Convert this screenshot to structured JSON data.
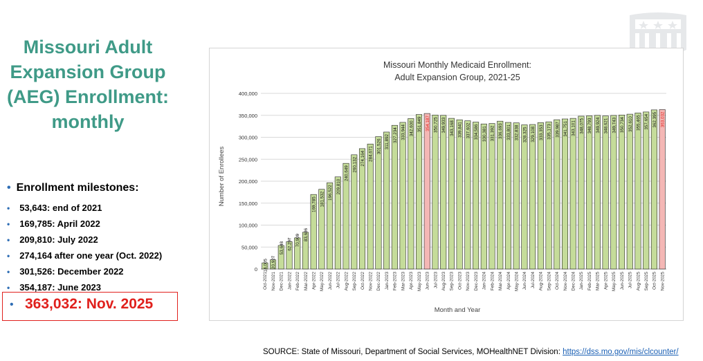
{
  "title": "Missouri Adult Expansion Group (AEG) Enrollment: monthly",
  "milestones": {
    "heading": "Enrollment milestones:",
    "items": [
      "53,643: end of 2021",
      "169,785: April 2022",
      "209,810: July 2022",
      "274,164 after one year (Oct. 2022)",
      "301,526: December 2022",
      "354,187: June 2023"
    ],
    "highlight": "363,032: Nov. 2025"
  },
  "source": {
    "text": "SOURCE: State of Missouri, Department of Social Services, MOHealthNET Division:",
    "link": "https://dss.mo.gov/mis/clcounter/"
  },
  "colors": {
    "bar": "#c5dc9a",
    "highlight_bar": "#f4b7b5",
    "title": "#3f9a87",
    "accent": "#e0201c"
  },
  "chart_data": {
    "type": "bar",
    "title": [
      "Missouri Monthly Medicaid Enrollment:",
      "Adult Expansion Group, 2021-25"
    ],
    "xlabel": "Month and Year",
    "ylabel": "Number of Enrollees",
    "ylim": [
      0,
      400000
    ],
    "yticks": [
      "0",
      "50,000",
      "100,000",
      "150,000",
      "200,000",
      "250,000",
      "300,000",
      "350,000",
      "400,000"
    ],
    "grid": true,
    "categories": [
      "Oct-2021",
      "Nov-2021",
      "Dec-2021",
      "Jan-2022",
      "Feb-2022",
      "Mar-2022",
      "Apr-2022",
      "May-2022",
      "Jun-2022",
      "Jul-2022",
      "Aug-2022",
      "Sep-2022",
      "Oct-2022",
      "Nov-2022",
      "Dec-2022",
      "Jan-2023",
      "Feb-2023",
      "Mar-2023",
      "Apr-2023",
      "May-2023",
      "Jun-2023",
      "Jul-2023",
      "Aug-2023",
      "Sep-2023",
      "Oct-2023",
      "Nov-2023",
      "Dec-2023",
      "Jan-2024",
      "Feb-2024",
      "Mar-2024",
      "Apr-2024",
      "May-2024",
      "Jun-2024",
      "Jul-2024",
      "Aug-2024",
      "Sep-2024",
      "Oct-2024",
      "Nov-2024",
      "Dec-2024",
      "Jan-2025",
      "Feb-2025",
      "Mar-2025",
      "Apr-2025",
      "May-2025",
      "Jun-2025",
      "Jul-2025",
      "Aug-2025",
      "Sep-2025",
      "Oct-2025",
      "Nov-2025"
    ],
    "values": [
      14005,
      20927,
      53643,
      62297,
      70909,
      83686,
      169785,
      181532,
      196522,
      209810,
      240649,
      260132,
      274164,
      284671,
      301526,
      311892,
      327234,
      333944,
      342600,
      351849,
      354187,
      350725,
      349933,
      343168,
      339841,
      337602,
      334586,
      330381,
      331392,
      336693,
      333801,
      332838,
      328325,
      329108,
      333353,
      335173,
      339987,
      341751,
      343101,
      348075,
      348793,
      349924,
      348621,
      349743,
      350734,
      352610,
      355465,
      357654,
      362395,
      363032
    ],
    "labels": [
      "14,005",
      "20,927",
      "53,643",
      "62,297",
      "70,909",
      "83,686",
      "169,785",
      "181,532",
      "196,522",
      "209,810",
      "240,649",
      "260,132",
      "274,164",
      "284,671",
      "301,526",
      "311,892",
      "327,234",
      "333,944",
      "342,600",
      "351,849",
      "354,187",
      "350,725",
      "349,933",
      "343,168",
      "339,841",
      "337,602",
      "334,586",
      "330,381",
      "331,392",
      "336,693",
      "333,801",
      "332,838",
      "328,325",
      "329,108",
      "333,353",
      "335,173",
      "339,987",
      "341,751",
      "343,101",
      "348,075",
      "348,793",
      "349,924",
      "348,621",
      "349,743",
      "350,734",
      "352,610",
      "355,465",
      "357,654",
      "362,395",
      "363,032"
    ],
    "highlight_indices": [
      20,
      49
    ]
  }
}
